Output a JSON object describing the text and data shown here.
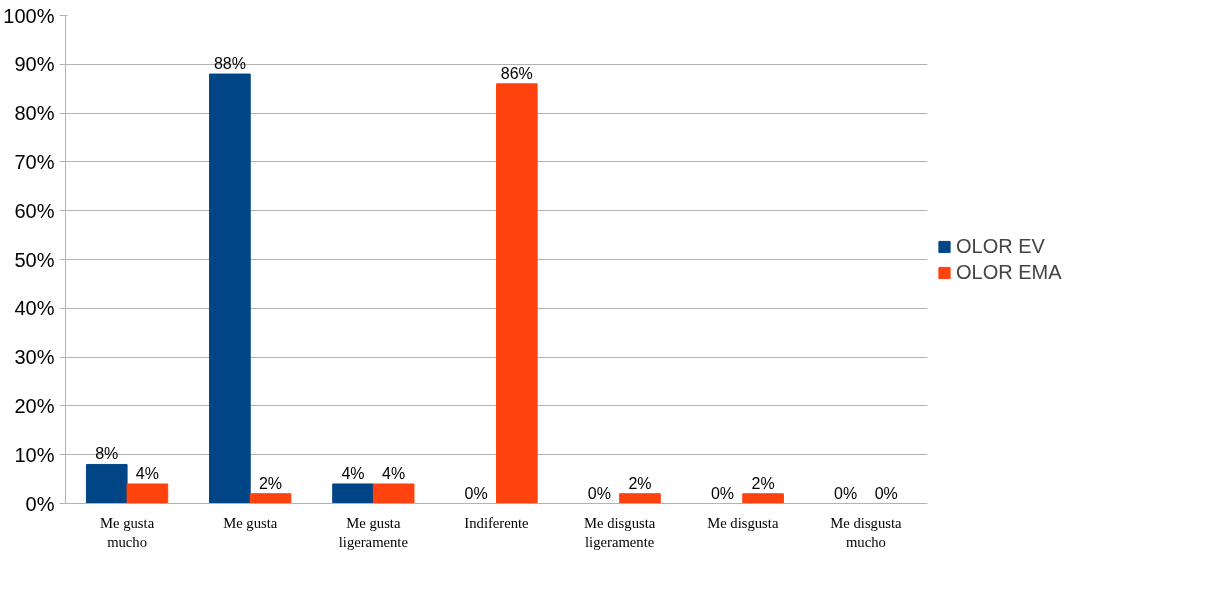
{
  "chart_data": {
    "type": "bar",
    "categories": [
      "Me gusta mucho",
      "Me gusta",
      "Me gusta ligeramente",
      "Indiferente",
      "Me disgusta ligeramente",
      "Me disgusta",
      "Me disgusta mucho"
    ],
    "series": [
      {
        "name": "OLOR EV",
        "color": "#004586",
        "values": [
          8,
          88,
          4,
          0,
          0,
          0,
          0
        ],
        "value_labels": [
          "8%",
          "88%",
          "4%",
          "0%",
          "0%",
          "0%",
          "0%"
        ]
      },
      {
        "name": "OLOR EMA",
        "color": "#ff420e",
        "values": [
          4,
          2,
          4,
          86,
          2,
          2,
          0
        ],
        "value_labels": [
          "4%",
          "2%",
          "4%",
          "86%",
          "2%",
          "2%",
          "0%"
        ]
      }
    ],
    "ylim": [
      0,
      100
    ],
    "yticks": [
      {
        "value": 0,
        "label": "0%"
      },
      {
        "value": 10,
        "label": "10%"
      },
      {
        "value": 20,
        "label": "20%"
      },
      {
        "value": 30,
        "label": "30%"
      },
      {
        "value": 40,
        "label": "40%"
      },
      {
        "value": 50,
        "label": "50%"
      },
      {
        "value": 60,
        "label": "60%"
      },
      {
        "value": 70,
        "label": "70%"
      },
      {
        "value": 80,
        "label": "80%"
      },
      {
        "value": 90,
        "label": "90%"
      },
      {
        "value": 100,
        "label": "100%"
      }
    ],
    "grid": "y",
    "legend": "right"
  }
}
